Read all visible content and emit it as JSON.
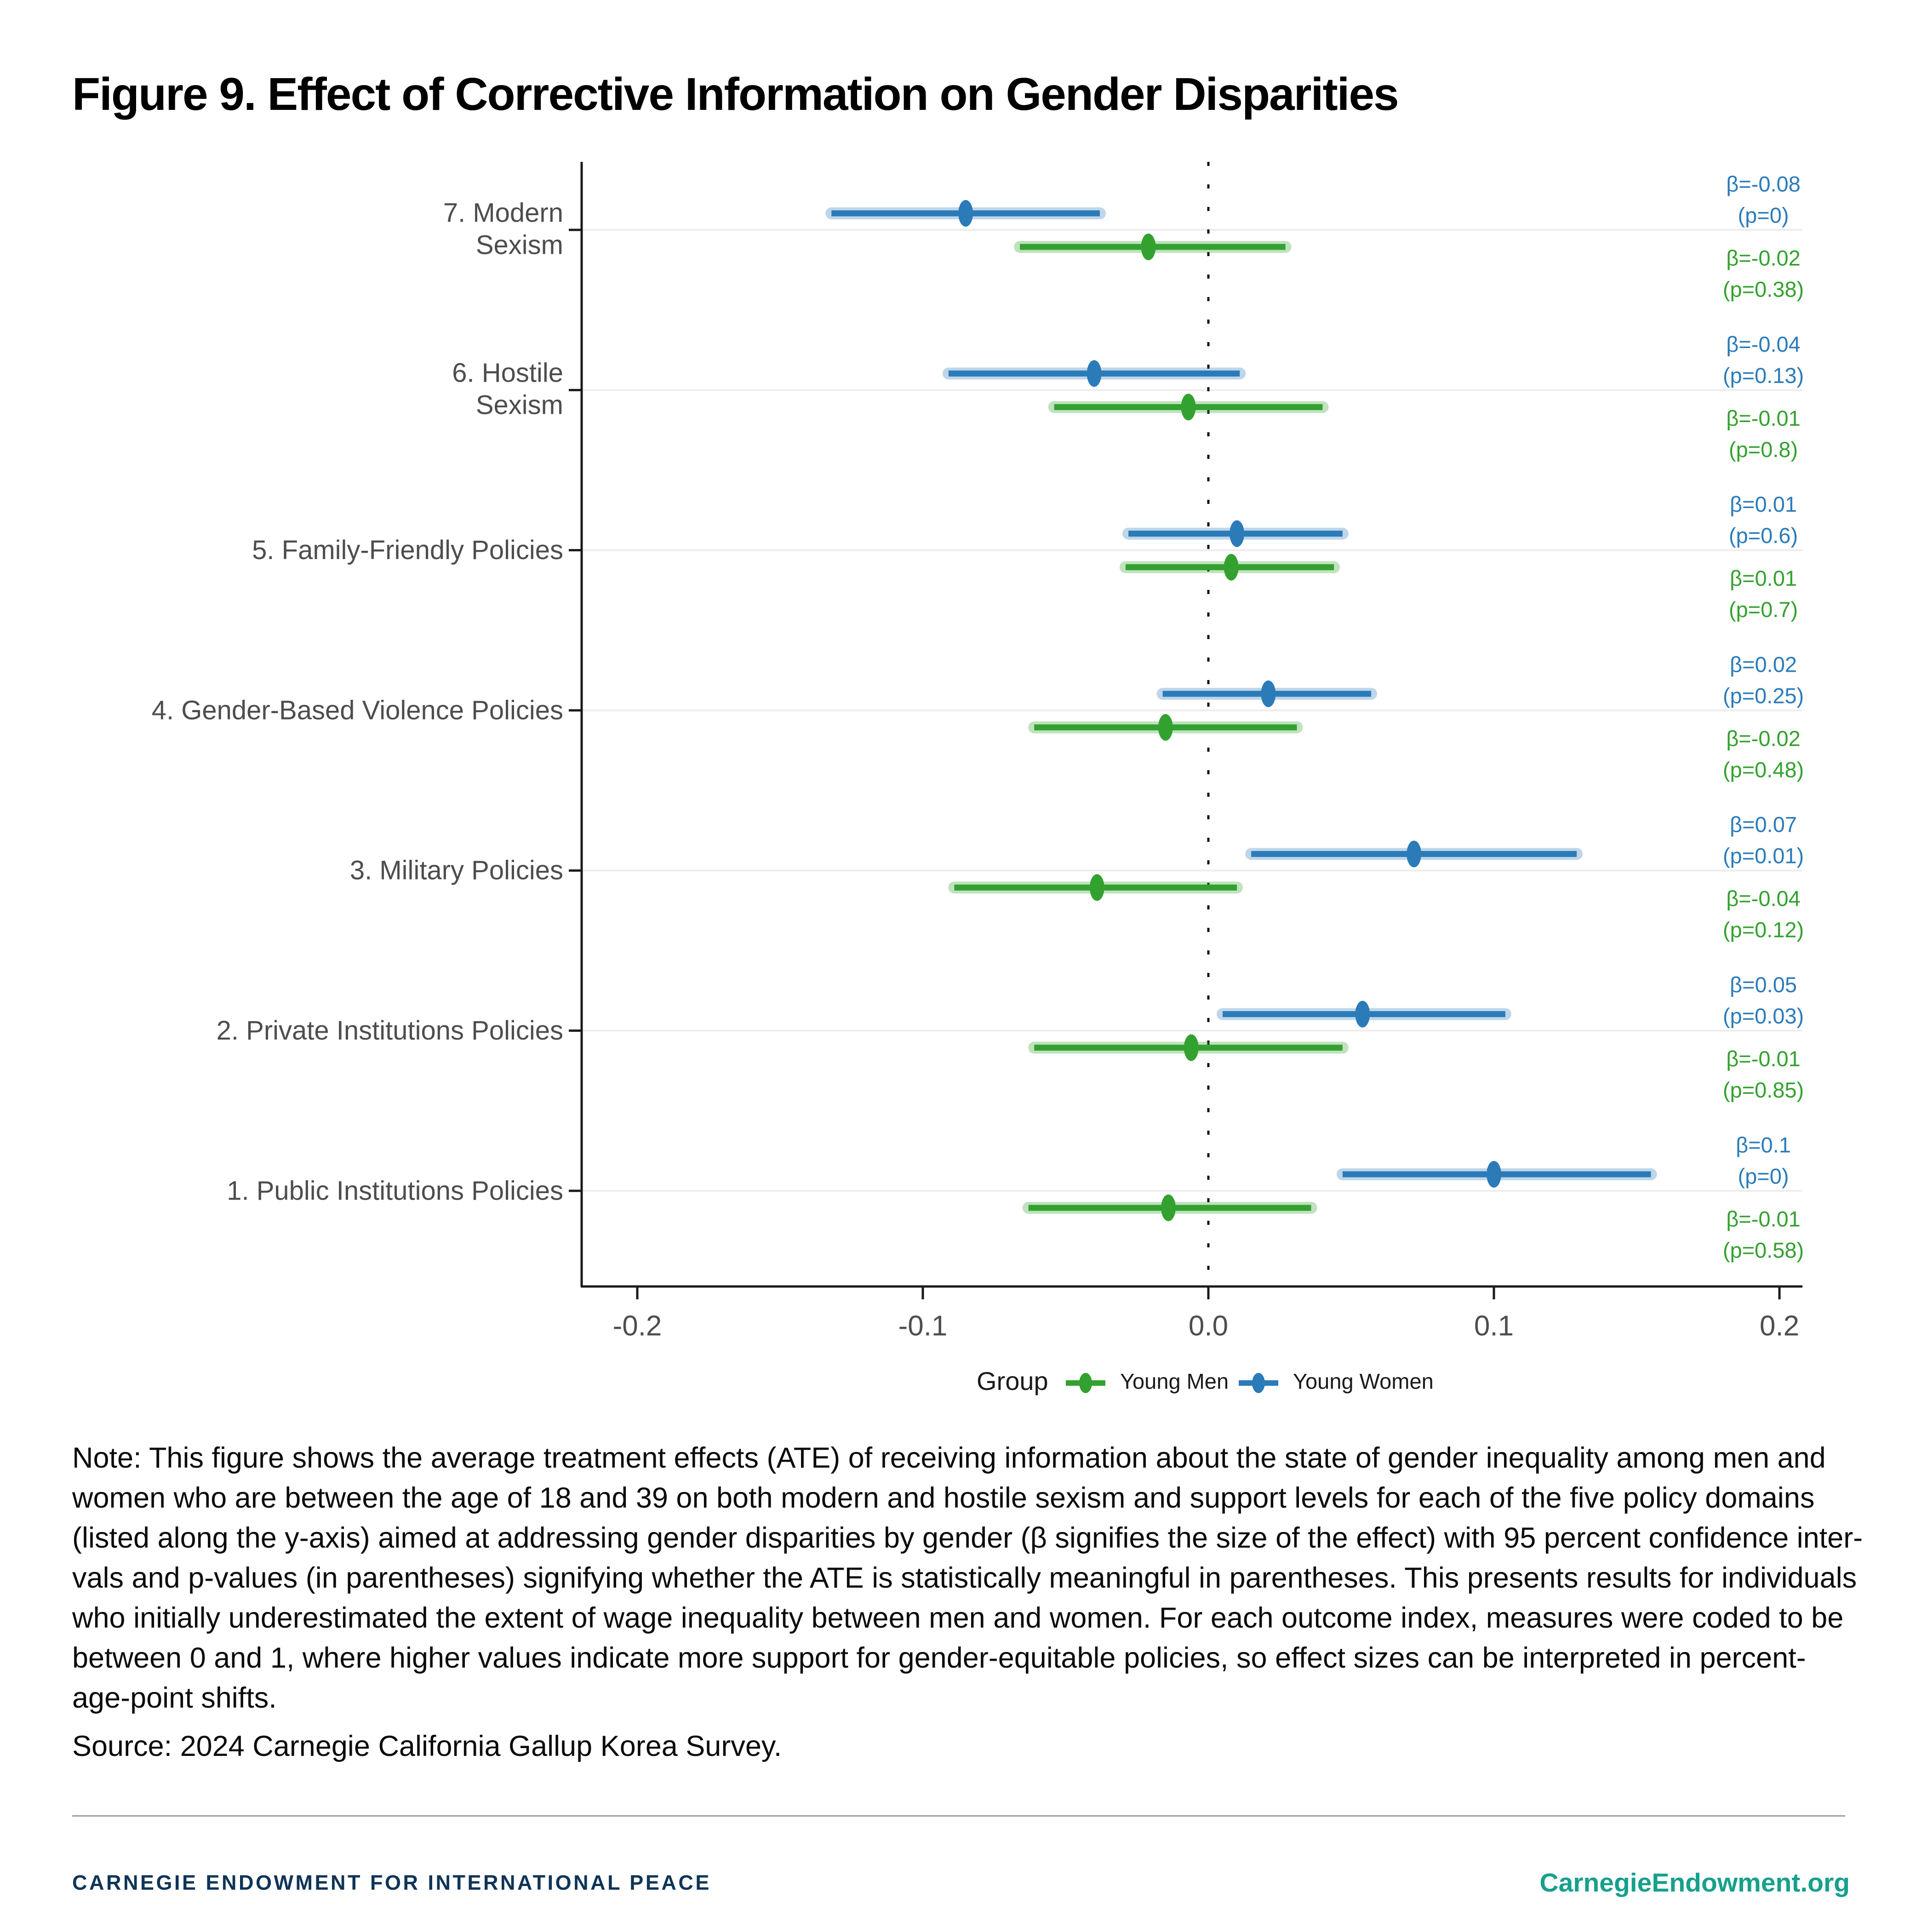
{
  "title": "Figure 9. Effect of Corrective Information on Gender Disparities",
  "chart_data": {
    "type": "forest",
    "title": "",
    "xlabel": "",
    "ylabel": "",
    "x_axis": {
      "range": [
        -0.22,
        0.21
      ],
      "tick_values": [
        -0.2,
        -0.1,
        0.0,
        0.1,
        0.2
      ],
      "tick_labels": [
        "-0.2",
        "-0.1",
        "0.0",
        "0.1",
        "0.2"
      ]
    },
    "zero_reference_line": 0,
    "grid": "horizontal-light",
    "legend": {
      "title": "Group",
      "position": "bottom",
      "series": [
        {
          "name": "Young Men",
          "color": "#33a12f"
        },
        {
          "name": "Young Women",
          "color": "#2b7bb9"
        }
      ]
    },
    "categories": [
      {
        "label_lines": [
          "7. Modern",
          "Sexism"
        ],
        "young_women": {
          "beta_label": "β=-0.08",
          "p_label": "(p=0)",
          "estimate": -0.085,
          "ci": [
            -0.132,
            -0.038
          ]
        },
        "young_men": {
          "beta_label": "β=-0.02",
          "p_label": "(p=0.38)",
          "estimate": -0.021,
          "ci": [
            -0.066,
            0.027
          ]
        }
      },
      {
        "label_lines": [
          "6. Hostile",
          "Sexism"
        ],
        "young_women": {
          "beta_label": "β=-0.04",
          "p_label": "(p=0.13)",
          "estimate": -0.04,
          "ci": [
            -0.091,
            0.011
          ]
        },
        "young_men": {
          "beta_label": "β=-0.01",
          "p_label": "(p=0.8)",
          "estimate": -0.007,
          "ci": [
            -0.054,
            0.04
          ]
        }
      },
      {
        "label_lines": [
          "5. Family-Friendly Policies"
        ],
        "young_women": {
          "beta_label": "β=0.01",
          "p_label": "(p=0.6)",
          "estimate": 0.01,
          "ci": [
            -0.028,
            0.047
          ]
        },
        "young_men": {
          "beta_label": "β=0.01",
          "p_label": "(p=0.7)",
          "estimate": 0.008,
          "ci": [
            -0.029,
            0.044
          ]
        }
      },
      {
        "label_lines": [
          "4. Gender-Based Violence Policies"
        ],
        "young_women": {
          "beta_label": "β=0.02",
          "p_label": "(p=0.25)",
          "estimate": 0.021,
          "ci": [
            -0.016,
            0.057
          ]
        },
        "young_men": {
          "beta_label": "β=-0.02",
          "p_label": "(p=0.48)",
          "estimate": -0.015,
          "ci": [
            -0.061,
            0.031
          ]
        }
      },
      {
        "label_lines": [
          "3. Military Policies"
        ],
        "young_women": {
          "beta_label": "β=0.07",
          "p_label": "(p=0.01)",
          "estimate": 0.072,
          "ci": [
            0.015,
            0.129
          ]
        },
        "young_men": {
          "beta_label": "β=-0.04",
          "p_label": "(p=0.12)",
          "estimate": -0.039,
          "ci": [
            -0.089,
            0.01
          ]
        }
      },
      {
        "label_lines": [
          "2. Private Institutions Policies"
        ],
        "young_women": {
          "beta_label": "β=0.05",
          "p_label": "(p=0.03)",
          "estimate": 0.054,
          "ci": [
            0.005,
            0.104
          ]
        },
        "young_men": {
          "beta_label": "β=-0.01",
          "p_label": "(p=0.85)",
          "estimate": -0.006,
          "ci": [
            -0.061,
            0.047
          ]
        }
      },
      {
        "label_lines": [
          "1. Public Institutions Policies"
        ],
        "young_women": {
          "beta_label": "β=0.1",
          "p_label": "(p=0)",
          "estimate": 0.1,
          "ci": [
            0.047,
            0.155
          ]
        },
        "young_men": {
          "beta_label": "β=-0.01",
          "p_label": "(p=0.58)",
          "estimate": -0.014,
          "ci": [
            -0.063,
            0.036
          ]
        }
      }
    ]
  },
  "note": {
    "lines": [
      "Note: This figure shows the average treatment effects (ATE) of receiving information about the state of gender inequality among men and",
      "women who are between the age of 18 and 39 on both modern and hostile sexism and support levels for each of the five policy domains",
      "(listed along the y-axis) aimed at addressing gender disparities by gender (β signifies the size of the effect) with 95 percent confidence inter-",
      "vals and p-values (in parentheses) signifying whether the ATE is statistically meaningful in parentheses. This presents results for individuals",
      "who initially underestimated the extent of wage inequality between men and women. For each outcome index, measures were coded to be",
      "between 0 and 1, where higher values indicate more support for gender-equitable policies, so effect sizes can be interpreted in percent-",
      "age-point shifts."
    ]
  },
  "source": "Source: 2024 Carnegie California Gallup Korea Survey.",
  "footer": {
    "left": "CARNEGIE ENDOWMENT FOR INTERNATIONAL PEACE",
    "right": "CarnegieEndowment.org"
  },
  "colors": {
    "young_men_green": "#33a12f",
    "young_women_blue": "#2b7bb9",
    "axis_text_gray": "#4d4d4d",
    "gridline_gray": "#ededed",
    "footer_navy": "#0f3557",
    "footer_teal": "#16a08c"
  }
}
